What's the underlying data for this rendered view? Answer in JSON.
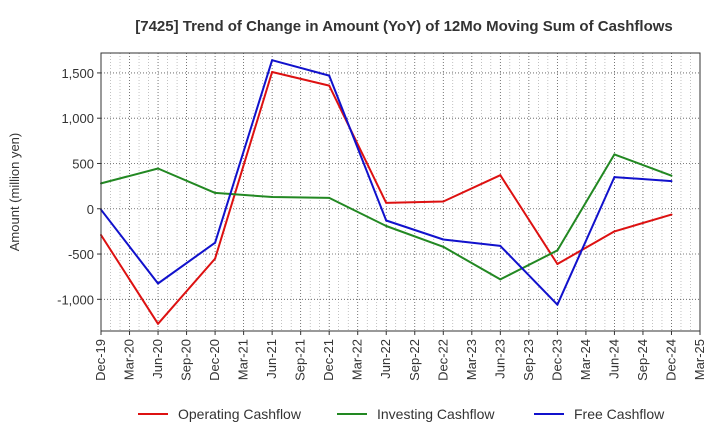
{
  "chart_data": {
    "type": "line",
    "title": "[7425]  Trend of Change in Amount (YoY) of 12Mo Moving Sum of Cashflows",
    "xlabel": "",
    "ylabel": "Amount (million yen)",
    "ylim": [
      -1350,
      1720
    ],
    "yticks": [
      -1000,
      -500,
      0,
      500,
      1000,
      1500
    ],
    "ytick_labels": [
      "-1,000",
      "-500",
      "0",
      "500",
      "1,000",
      "1,500"
    ],
    "categories": [
      "Dec-19",
      "Mar-20",
      "Jun-20",
      "Sep-20",
      "Dec-20",
      "Mar-21",
      "Jun-21",
      "Sep-21",
      "Dec-21",
      "Mar-22",
      "Jun-22",
      "Sep-22",
      "Dec-22",
      "Mar-23",
      "Jun-23",
      "Sep-23",
      "Dec-23",
      "Mar-24",
      "Jun-24",
      "Sep-24",
      "Dec-24",
      "Mar-25"
    ],
    "grid": true,
    "legend_position": "bottom",
    "series": [
      {
        "name": "Operating Cashflow",
        "color": "#dd1111",
        "points": [
          {
            "cat": "Dec-19",
            "value": -290
          },
          {
            "cat": "Jun-20",
            "value": -1270
          },
          {
            "cat": "Dec-20",
            "value": -550
          },
          {
            "cat": "Jun-21",
            "value": 1510
          },
          {
            "cat": "Dec-21",
            "value": 1360
          },
          {
            "cat": "Jun-22",
            "value": 65
          },
          {
            "cat": "Dec-22",
            "value": 80
          },
          {
            "cat": "Jun-23",
            "value": 370
          },
          {
            "cat": "Dec-23",
            "value": -610
          },
          {
            "cat": "Jun-24",
            "value": -250
          },
          {
            "cat": "Dec-24",
            "value": -65
          }
        ]
      },
      {
        "name": "Investing Cashflow",
        "color": "#228822",
        "points": [
          {
            "cat": "Dec-19",
            "value": 280
          },
          {
            "cat": "Jun-20",
            "value": 445
          },
          {
            "cat": "Dec-20",
            "value": 175
          },
          {
            "cat": "Jun-21",
            "value": 130
          },
          {
            "cat": "Dec-21",
            "value": 120
          },
          {
            "cat": "Jun-22",
            "value": -190
          },
          {
            "cat": "Dec-22",
            "value": -420
          },
          {
            "cat": "Jun-23",
            "value": -780
          },
          {
            "cat": "Dec-23",
            "value": -460
          },
          {
            "cat": "Jun-24",
            "value": 600
          },
          {
            "cat": "Dec-24",
            "value": 365
          }
        ]
      },
      {
        "name": "Free Cashflow",
        "color": "#1111cc",
        "points": [
          {
            "cat": "Dec-19",
            "value": -10
          },
          {
            "cat": "Jun-20",
            "value": -825
          },
          {
            "cat": "Dec-20",
            "value": -375
          },
          {
            "cat": "Jun-21",
            "value": 1640
          },
          {
            "cat": "Dec-21",
            "value": 1470
          },
          {
            "cat": "Jun-22",
            "value": -130
          },
          {
            "cat": "Dec-22",
            "value": -340
          },
          {
            "cat": "Jun-23",
            "value": -410
          },
          {
            "cat": "Dec-23",
            "value": -1060
          },
          {
            "cat": "Jun-24",
            "value": 350
          },
          {
            "cat": "Dec-24",
            "value": 305
          }
        ]
      }
    ]
  }
}
